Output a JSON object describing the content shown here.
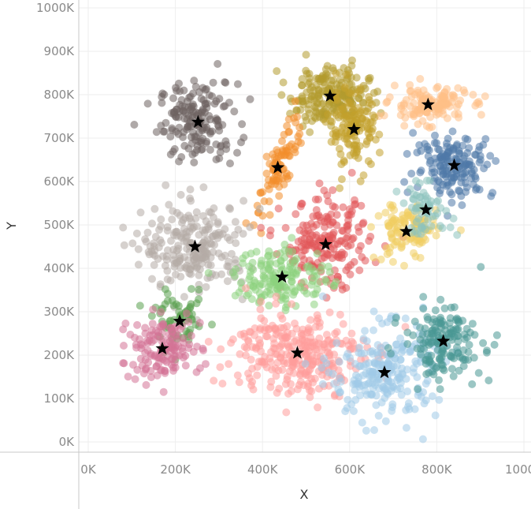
{
  "chart_data": {
    "type": "scatter",
    "title": "",
    "xlabel": "X",
    "ylabel": "Y",
    "xlim": [
      0,
      1000000
    ],
    "ylim": [
      0,
      1000000
    ],
    "x_ticks": [
      0,
      200000,
      400000,
      600000,
      800000,
      1000000
    ],
    "y_ticks": [
      0,
      100000,
      200000,
      300000,
      400000,
      500000,
      600000,
      700000,
      800000,
      900000,
      1000000
    ],
    "x_tick_labels": [
      "0K",
      "200K",
      "400K",
      "600K",
      "800K",
      "1000K"
    ],
    "y_tick_labels": [
      "0K",
      "100K",
      "200K",
      "300K",
      "400K",
      "500K",
      "600K",
      "700K",
      "800K",
      "900K",
      "1000K"
    ],
    "grid": true,
    "legend": "none",
    "marker": "circle",
    "centroid_marker": "star",
    "clusters": [
      {
        "color": "#6e6260",
        "centroid": [
          252000,
          737000
        ],
        "spread": [
          45000,
          45000
        ],
        "points": 170
      },
      {
        "color": "#b39a2d",
        "centroid": [
          555000,
          797000
        ],
        "spread": [
          45000,
          35000
        ],
        "points": 210
      },
      {
        "color": "#ffbf86",
        "centroid": [
          780000,
          777000
        ],
        "spread": [
          45000,
          20000
        ],
        "points": 140
      },
      {
        "color": "#c2a12b",
        "centroid": [
          610000,
          720000
        ],
        "spread": [
          28000,
          45000
        ],
        "points": 130
      },
      {
        "color": "#f28e2b",
        "centroid": [
          435000,
          632000
        ],
        "spread": [
          15000,
          60000
        ],
        "points": 90,
        "tilt": -0.35
      },
      {
        "color": "#4e79a7",
        "centroid": [
          840000,
          637000
        ],
        "spread": [
          45000,
          35000
        ],
        "points": 160
      },
      {
        "color": "#b5aca6",
        "centroid": [
          245000,
          450000
        ],
        "spread": [
          60000,
          50000
        ],
        "points": 230
      },
      {
        "color": "#e15759",
        "centroid": [
          545000,
          455000
        ],
        "spread": [
          50000,
          50000
        ],
        "points": 200
      },
      {
        "color": "#f1ce63",
        "centroid": [
          730000,
          485000
        ],
        "spread": [
          35000,
          35000
        ],
        "points": 110
      },
      {
        "color": "#8cc2bd",
        "centroid": [
          775000,
          535000
        ],
        "spread": [
          30000,
          28000
        ],
        "points": 60
      },
      {
        "color": "#8cd17d",
        "centroid": [
          445000,
          380000
        ],
        "spread": [
          55000,
          35000
        ],
        "points": 160
      },
      {
        "color": "#59a14f",
        "centroid": [
          210000,
          278000
        ],
        "spread": [
          30000,
          30000
        ],
        "points": 60
      },
      {
        "color": "#d37295",
        "centroid": [
          170000,
          215000
        ],
        "spread": [
          45000,
          35000
        ],
        "points": 140
      },
      {
        "color": "#ff9d9a",
        "centroid": [
          480000,
          205000
        ],
        "spread": [
          75000,
          50000
        ],
        "points": 300
      },
      {
        "color": "#a0cbe8",
        "centroid": [
          680000,
          160000
        ],
        "spread": [
          60000,
          55000
        ],
        "points": 240
      },
      {
        "color": "#499894",
        "centroid": [
          815000,
          232000
        ],
        "spread": [
          45000,
          40000
        ],
        "points": 160
      }
    ]
  }
}
